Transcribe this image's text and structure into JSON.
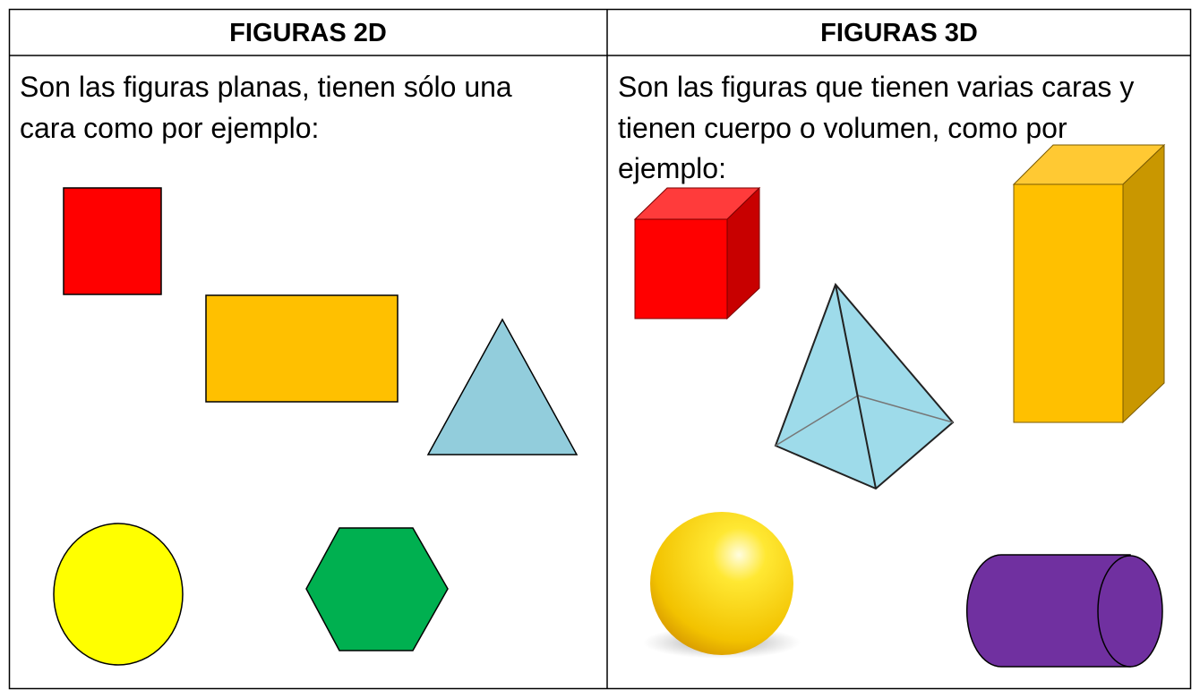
{
  "table": {
    "headers": [
      "FIGURAS 2D",
      "FIGURAS 3D"
    ],
    "rows": [
      [
        [
          "Son las figuras planas, tienen sólo una",
          "cara como por ejemplo:"
        ],
        [
          "Son las figuras que tienen varias caras y",
          "tienen cuerpo o volumen, como por",
          "ejemplo:"
        ]
      ]
    ]
  }
}
